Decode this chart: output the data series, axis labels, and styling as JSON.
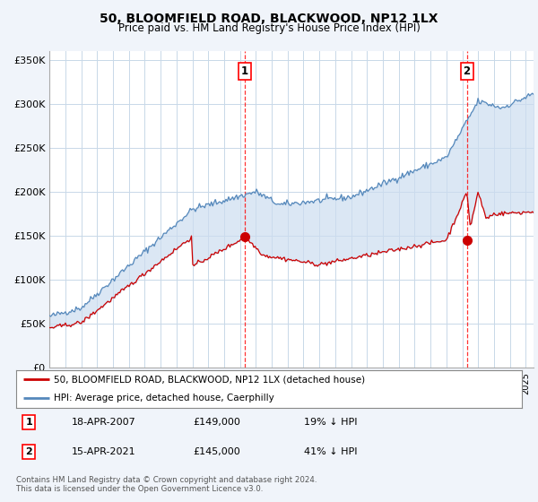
{
  "title": "50, BLOOMFIELD ROAD, BLACKWOOD, NP12 1LX",
  "subtitle": "Price paid vs. HM Land Registry's House Price Index (HPI)",
  "background_color": "#f0f4fa",
  "plot_bg_color": "#ffffff",
  "grid_color": "#c8d8e8",
  "red_line_color": "#cc0000",
  "blue_line_color": "#5588bb",
  "fill_color": "#ccddf0",
  "yticks": [
    0,
    50000,
    100000,
    150000,
    200000,
    250000,
    300000,
    350000
  ],
  "ytick_labels": [
    "£0",
    "£50K",
    "£100K",
    "£150K",
    "£200K",
    "£250K",
    "£300K",
    "£350K"
  ],
  "sale1": {
    "date_num": 2007.29,
    "price": 149000,
    "label": "1",
    "date_str": "18-APR-2007",
    "hpi_diff": "19% ↓ HPI"
  },
  "sale2": {
    "date_num": 2021.29,
    "price": 145000,
    "label": "2",
    "date_str": "15-APR-2021",
    "hpi_diff": "41% ↓ HPI"
  },
  "legend_red": "50, BLOOMFIELD ROAD, BLACKWOOD, NP12 1LX (detached house)",
  "legend_blue": "HPI: Average price, detached house, Caerphilly",
  "footnote": "Contains HM Land Registry data © Crown copyright and database right 2024.\nThis data is licensed under the Open Government Licence v3.0.",
  "xmin": 1995,
  "xmax": 2025.5
}
